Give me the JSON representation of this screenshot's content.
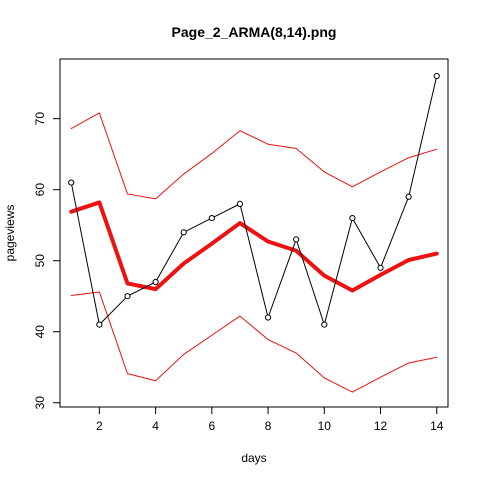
{
  "chart_data": {
    "type": "line",
    "title": "Page_2_ARMA(8,14).png",
    "xlabel": "days",
    "ylabel": "pageviews",
    "xlim": [
      0.6,
      14.4
    ],
    "ylim": [
      29.4,
      78.4
    ],
    "x_ticks": [
      2,
      4,
      6,
      8,
      10,
      12,
      14
    ],
    "y_ticks": [
      30,
      40,
      50,
      60,
      70
    ],
    "x": [
      1,
      2,
      3,
      4,
      5,
      6,
      7,
      8,
      9,
      10,
      11,
      12,
      13,
      14
    ],
    "grid": false,
    "legend": "none",
    "series": [
      {
        "key": "observed",
        "color": "#000000",
        "line_width": 1,
        "markers": "open-circle",
        "values": [
          61,
          41,
          45,
          47,
          54,
          56,
          58,
          42,
          53,
          41,
          56,
          49,
          59,
          76
        ]
      },
      {
        "key": "fitted",
        "color": "#ee1111",
        "line_width": 4,
        "markers": "none",
        "values": [
          56.9,
          58.2,
          46.8,
          46.0,
          49.6,
          52.4,
          55.3,
          52.7,
          51.4,
          47.9,
          45.8,
          48.0,
          50.1,
          51.0
        ]
      },
      {
        "key": "upper-bound",
        "color": "#ee1111",
        "line_width": 1,
        "markers": "none",
        "values": [
          68.6,
          70.8,
          59.4,
          58.7,
          62.2,
          65.1,
          68.3,
          66.4,
          65.8,
          62.5,
          60.4,
          62.5,
          64.5,
          65.7
        ]
      },
      {
        "key": "lower-bound",
        "color": "#ee1111",
        "line_width": 1,
        "markers": "none",
        "values": [
          45.1,
          45.6,
          34.1,
          33.1,
          36.8,
          39.5,
          42.2,
          38.9,
          37.0,
          33.5,
          31.5,
          33.6,
          35.6,
          36.4
        ]
      }
    ]
  }
}
